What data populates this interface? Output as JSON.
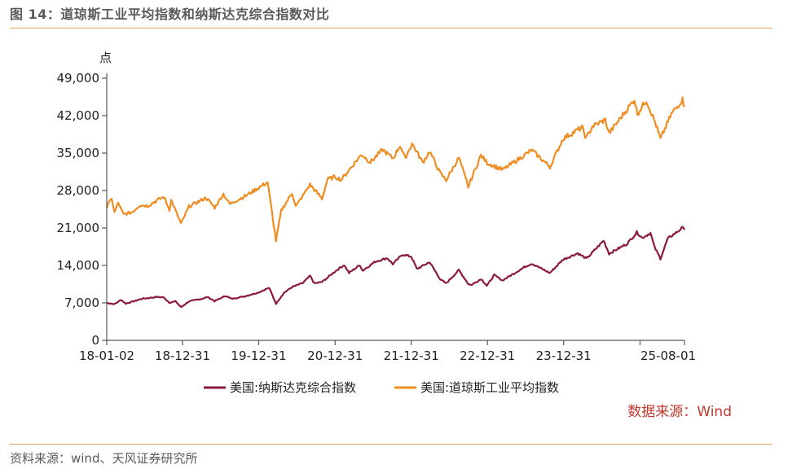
{
  "figure": {
    "title": "图 14：道琼斯工业平均指数和纳斯达克综合指数对比",
    "source_note": "资料来源：wind、天风证券研究所"
  },
  "chart_data": {
    "type": "line",
    "unit": "点",
    "data_source": "数据来源：Wind",
    "ylim": [
      0,
      49000
    ],
    "y_ticks": [
      {
        "value": 0,
        "label": "0"
      },
      {
        "value": 7000,
        "label": "7,000"
      },
      {
        "value": 14000,
        "label": "14,000"
      },
      {
        "value": 21000,
        "label": "21,000"
      },
      {
        "value": 28000,
        "label": "28,000"
      },
      {
        "value": 35000,
        "label": "35,000"
      },
      {
        "value": 42000,
        "label": "42,000"
      },
      {
        "value": 49000,
        "label": "49,000"
      }
    ],
    "xlim": [
      "2018-01-02",
      "2025-08-01"
    ],
    "x_ticks": [
      {
        "value": "2018-01-02",
        "label": "18-01-02"
      },
      {
        "value": "2018-12-31",
        "label": "18-12-31"
      },
      {
        "value": "2019-12-31",
        "label": "19-12-31"
      },
      {
        "value": "2020-12-31",
        "label": "20-12-31"
      },
      {
        "value": "2021-12-31",
        "label": "21-12-31"
      },
      {
        "value": "2022-12-31",
        "label": "22-12-31"
      },
      {
        "value": "2023-12-31",
        "label": "23-12-31"
      },
      {
        "value": "2024-12-31",
        "label": ""
      },
      {
        "value": "2025-08-01",
        "label": "25-08-01"
      }
    ],
    "legend_position": "bottom",
    "grid": false,
    "series": [
      {
        "name": "美国:纳斯达克综合指数",
        "color": "#8b1a3c",
        "points": [
          [
            "2018-01-02",
            7006
          ],
          [
            "2018-02-08",
            6777
          ],
          [
            "2018-03-12",
            7588
          ],
          [
            "2018-04-02",
            6870
          ],
          [
            "2018-05-15",
            7350
          ],
          [
            "2018-06-20",
            7781
          ],
          [
            "2018-07-25",
            7932
          ],
          [
            "2018-08-29",
            8110
          ],
          [
            "2018-10-01",
            8037
          ],
          [
            "2018-10-29",
            7050
          ],
          [
            "2018-11-28",
            7291
          ],
          [
            "2018-12-24",
            6192
          ],
          [
            "2019-01-31",
            7281
          ],
          [
            "2019-03-29",
            7729
          ],
          [
            "2019-04-30",
            8095
          ],
          [
            "2019-06-03",
            7333
          ],
          [
            "2019-07-26",
            8330
          ],
          [
            "2019-08-23",
            7751
          ],
          [
            "2019-10-31",
            8292
          ],
          [
            "2019-12-31",
            8972
          ],
          [
            "2020-02-19",
            9817
          ],
          [
            "2020-03-23",
            6860
          ],
          [
            "2020-04-30",
            8890
          ],
          [
            "2020-06-08",
            9953
          ],
          [
            "2020-07-31",
            10745
          ],
          [
            "2020-09-02",
            12056
          ],
          [
            "2020-09-23",
            10633
          ],
          [
            "2020-10-30",
            10911
          ],
          [
            "2020-12-31",
            12888
          ],
          [
            "2021-02-12",
            14095
          ],
          [
            "2021-03-08",
            12609
          ],
          [
            "2021-04-29",
            14082
          ],
          [
            "2021-05-12",
            13032
          ],
          [
            "2021-07-12",
            14733
          ],
          [
            "2021-09-07",
            15374
          ],
          [
            "2021-10-04",
            14255
          ],
          [
            "2021-11-19",
            16057
          ],
          [
            "2021-12-31",
            15645
          ],
          [
            "2022-01-27",
            13353
          ],
          [
            "2022-03-29",
            14620
          ],
          [
            "2022-05-20",
            11354
          ],
          [
            "2022-06-16",
            10646
          ],
          [
            "2022-08-16",
            13128
          ],
          [
            "2022-09-30",
            10576
          ],
          [
            "2022-10-13",
            10321
          ],
          [
            "2022-12-01",
            11482
          ],
          [
            "2022-12-28",
            10213
          ],
          [
            "2023-02-02",
            12201
          ],
          [
            "2023-03-13",
            11189
          ],
          [
            "2023-06-30",
            13788
          ],
          [
            "2023-07-31",
            14346
          ],
          [
            "2023-10-26",
            12596
          ],
          [
            "2023-12-28",
            15095
          ],
          [
            "2024-03-07",
            16273
          ],
          [
            "2024-04-19",
            15282
          ],
          [
            "2024-07-10",
            18647
          ],
          [
            "2024-08-05",
            16200
          ],
          [
            "2024-10-31",
            18095
          ],
          [
            "2024-12-16",
            20174
          ],
          [
            "2025-01-10",
            19162
          ],
          [
            "2025-02-19",
            20056
          ],
          [
            "2025-03-10",
            17468
          ],
          [
            "2025-04-08",
            15268
          ],
          [
            "2025-05-13",
            19010
          ],
          [
            "2025-06-30",
            20370
          ],
          [
            "2025-07-28",
            21178
          ],
          [
            "2025-08-01",
            20650
          ]
        ]
      },
      {
        "name": "美国:道琼斯工业平均指数",
        "color": "#ef8c22",
        "points": [
          [
            "2018-01-02",
            24824
          ],
          [
            "2018-01-26",
            26617
          ],
          [
            "2018-02-08",
            23860
          ],
          [
            "2018-02-26",
            25709
          ],
          [
            "2018-03-23",
            23533
          ],
          [
            "2018-05-03",
            23930
          ],
          [
            "2018-06-11",
            25322
          ],
          [
            "2018-07-17",
            25120
          ],
          [
            "2018-08-29",
            26125
          ],
          [
            "2018-10-03",
            26828
          ],
          [
            "2018-10-29",
            24443
          ],
          [
            "2018-11-07",
            26180
          ],
          [
            "2018-12-24",
            21792
          ],
          [
            "2019-01-31",
            25000
          ],
          [
            "2019-04-23",
            26656
          ],
          [
            "2019-06-03",
            24819
          ],
          [
            "2019-07-15",
            27360
          ],
          [
            "2019-08-14",
            25480
          ],
          [
            "2019-10-31",
            27046
          ],
          [
            "2019-12-31",
            28538
          ],
          [
            "2020-02-12",
            29551
          ],
          [
            "2020-03-23",
            18592
          ],
          [
            "2020-04-17",
            24242
          ],
          [
            "2020-06-08",
            27572
          ],
          [
            "2020-06-26",
            25016
          ],
          [
            "2020-09-02",
            29100
          ],
          [
            "2020-10-30",
            26502
          ],
          [
            "2020-11-24",
            30046
          ],
          [
            "2020-12-31",
            30606
          ],
          [
            "2021-01-29",
            29983
          ],
          [
            "2021-05-07",
            34778
          ],
          [
            "2021-06-18",
            33290
          ],
          [
            "2021-08-16",
            35625
          ],
          [
            "2021-10-04",
            34002
          ],
          [
            "2021-11-08",
            36432
          ],
          [
            "2021-12-01",
            34022
          ],
          [
            "2022-01-04",
            36799
          ],
          [
            "2022-02-24",
            33223
          ],
          [
            "2022-03-29",
            35294
          ],
          [
            "2022-05-19",
            31253
          ],
          [
            "2022-06-16",
            29927
          ],
          [
            "2022-08-16",
            34152
          ],
          [
            "2022-09-30",
            28725
          ],
          [
            "2022-11-30",
            34590
          ],
          [
            "2022-12-30",
            33147
          ],
          [
            "2023-03-15",
            31875
          ],
          [
            "2023-07-31",
            35560
          ],
          [
            "2023-10-27",
            32418
          ],
          [
            "2023-12-28",
            37710
          ],
          [
            "2024-03-28",
            39807
          ],
          [
            "2024-04-17",
            37753
          ],
          [
            "2024-05-17",
            40004
          ],
          [
            "2024-07-17",
            41198
          ],
          [
            "2024-08-05",
            38703
          ],
          [
            "2024-12-04",
            45014
          ],
          [
            "2024-12-19",
            42342
          ],
          [
            "2025-01-30",
            44882
          ],
          [
            "2025-03-13",
            40813
          ],
          [
            "2025-04-08",
            37645
          ],
          [
            "2025-05-30",
            42270
          ],
          [
            "2025-07-23",
            45010
          ],
          [
            "2025-08-01",
            43589
          ]
        ]
      }
    ]
  }
}
